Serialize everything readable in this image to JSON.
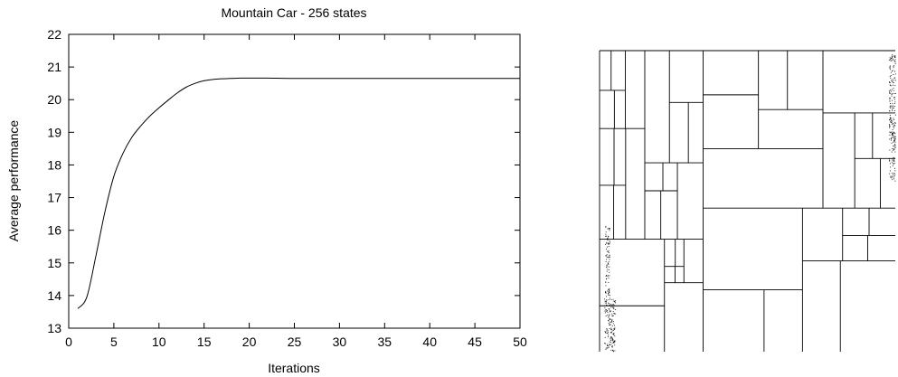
{
  "chart_data": {
    "type": "line",
    "title": "Mountain Car - 256 states",
    "xlabel": "Iterations",
    "ylabel": "Average performance",
    "xlim": [
      0,
      50
    ],
    "ylim": [
      13,
      22
    ],
    "xticks": [
      0,
      5,
      10,
      15,
      20,
      25,
      30,
      35,
      40,
      45,
      50
    ],
    "yticks": [
      13,
      14,
      15,
      16,
      17,
      18,
      19,
      20,
      21,
      22
    ],
    "grid": false,
    "series": [
      {
        "x": [
          1,
          2,
          3,
          4,
          5,
          6,
          7,
          8,
          9,
          10,
          11,
          12,
          13,
          14,
          15,
          16,
          17,
          18,
          19,
          20,
          22,
          25,
          30,
          35,
          40,
          45,
          50
        ],
        "values": [
          13.6,
          13.95,
          15.2,
          16.55,
          17.65,
          18.35,
          18.85,
          19.2,
          19.5,
          19.75,
          19.98,
          20.2,
          20.38,
          20.5,
          20.58,
          20.62,
          20.64,
          20.65,
          20.66,
          20.66,
          20.66,
          20.65,
          20.65,
          20.65,
          20.65,
          20.65,
          20.65
        ]
      }
    ]
  },
  "partition_map": {
    "description_icon": "state-space-partition-grid"
  }
}
